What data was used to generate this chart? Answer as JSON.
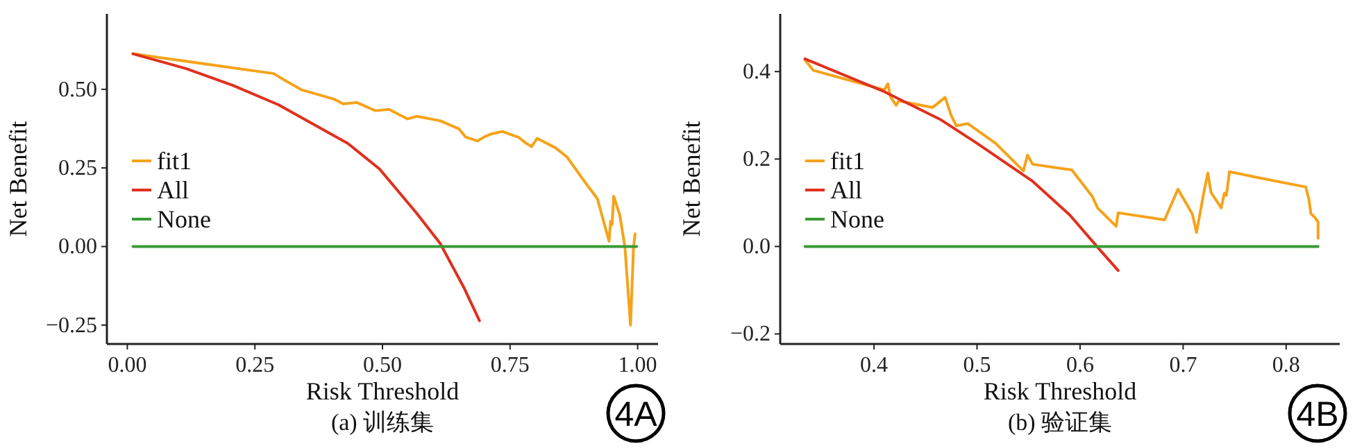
{
  "chart_data": [
    {
      "type": "line",
      "xlabel": "Risk Threshold",
      "ylabel": "Net Benefit",
      "legend": "left",
      "xlim": [
        -0.04,
        1.04
      ],
      "ylim": [
        -0.31,
        0.74
      ],
      "xticks": [
        {
          "value": 0,
          "label": "0.00"
        },
        {
          "value": 0.25,
          "label": "0.25"
        },
        {
          "value": 0.5,
          "label": "0.50"
        },
        {
          "value": 0.75,
          "label": "0.75"
        },
        {
          "value": 1,
          "label": "1.00"
        }
      ],
      "yticks": [
        {
          "value": -0.25,
          "label": "−0.25"
        },
        {
          "value": 0,
          "label": "0.00"
        },
        {
          "value": 0.25,
          "label": "0.25"
        },
        {
          "value": 0.5,
          "label": "0.50"
        }
      ],
      "annotations": [
        "(a) 训练集",
        "4A"
      ],
      "series": [
        {
          "name": "fit1",
          "color": "#f5a31a",
          "x": [
            0.011,
            0.287,
            0.305,
            0.342,
            0.405,
            0.423,
            0.45,
            0.486,
            0.513,
            0.549,
            0.568,
            0.613,
            0.65,
            0.663,
            0.686,
            0.699,
            0.713,
            0.735,
            0.767,
            0.781,
            0.792,
            0.803,
            0.839,
            0.862,
            0.894,
            0.921,
            0.944,
            0.947,
            0.95,
            0.953,
            0.965,
            0.975,
            0.986,
            0.992,
            0.995
          ],
          "values": [
            0.613,
            0.55,
            0.532,
            0.498,
            0.469,
            0.454,
            0.458,
            0.432,
            0.436,
            0.406,
            0.414,
            0.4,
            0.374,
            0.348,
            0.336,
            0.348,
            0.358,
            0.366,
            0.347,
            0.329,
            0.318,
            0.344,
            0.314,
            0.284,
            0.211,
            0.152,
            0.017,
            0.08,
            0.07,
            0.16,
            0.1,
            0.0,
            -0.25,
            0.0,
            0.04
          ]
        },
        {
          "name": "All",
          "color": "#e0301e",
          "x": [
            0.011,
            0.115,
            0.206,
            0.296,
            0.432,
            0.494,
            0.567,
            0.613,
            0.659,
            0.69
          ],
          "values": [
            0.613,
            0.566,
            0.513,
            0.451,
            0.328,
            0.247,
            0.106,
            0.01,
            -0.129,
            -0.236
          ]
        },
        {
          "name": "None",
          "color": "#3a9a35",
          "x": [
            0.011,
            0.998
          ],
          "values": [
            0,
            0
          ]
        }
      ]
    },
    {
      "type": "line",
      "xlabel": "Risk Threshold",
      "ylabel": "Net Benefit",
      "legend": "left",
      "xlim": [
        0.309,
        0.852
      ],
      "ylim": [
        -0.223,
        0.532
      ],
      "xticks": [
        {
          "value": 0.4,
          "label": "0.4"
        },
        {
          "value": 0.5,
          "label": "0.5"
        },
        {
          "value": 0.6,
          "label": "0.6"
        },
        {
          "value": 0.7,
          "label": "0.7"
        },
        {
          "value": 0.8,
          "label": "0.8"
        }
      ],
      "yticks": [
        {
          "value": -0.2,
          "label": "−0.2"
        },
        {
          "value": 0,
          "label": "0.0"
        },
        {
          "value": 0.2,
          "label": "0.2"
        },
        {
          "value": 0.4,
          "label": "0.4"
        }
      ],
      "annotations": [
        "(b) 验证集",
        "4B"
      ],
      "series": [
        {
          "name": "fit1",
          "color": "#f5a31a",
          "x": [
            0.333,
            0.341,
            0.41,
            0.4135,
            0.416,
            0.4215,
            0.424,
            0.457,
            0.469,
            0.475,
            0.48,
            0.491,
            0.518,
            0.545,
            0.549,
            0.554,
            0.592,
            0.612,
            0.617,
            0.635,
            0.637,
            0.682,
            0.695,
            0.709,
            0.713,
            0.72,
            0.724,
            0.727,
            0.737,
            0.74,
            0.742,
            0.745,
            0.774,
            0.819,
            0.822,
            0.824,
            0.828,
            0.831,
            0.831
          ],
          "values": [
            0.427,
            0.403,
            0.358,
            0.372,
            0.342,
            0.323,
            0.333,
            0.318,
            0.341,
            0.299,
            0.276,
            0.281,
            0.236,
            0.173,
            0.209,
            0.188,
            0.175,
            0.114,
            0.088,
            0.046,
            0.077,
            0.061,
            0.131,
            0.074,
            0.032,
            0.122,
            0.168,
            0.124,
            0.088,
            0.122,
            0.117,
            0.171,
            0.157,
            0.136,
            0.109,
            0.075,
            0.066,
            0.056,
            0.019
          ]
        },
        {
          "name": "All",
          "color": "#e0301e",
          "x": [
            0.333,
            0.41,
            0.464,
            0.5,
            0.554,
            0.59,
            0.619,
            0.637
          ],
          "values": [
            0.429,
            0.354,
            0.291,
            0.236,
            0.149,
            0.072,
            -0.007,
            -0.055
          ]
        },
        {
          "name": "None",
          "color": "#3a9a35",
          "x": [
            0.333,
            0.831
          ],
          "values": [
            0,
            0
          ]
        }
      ]
    }
  ]
}
